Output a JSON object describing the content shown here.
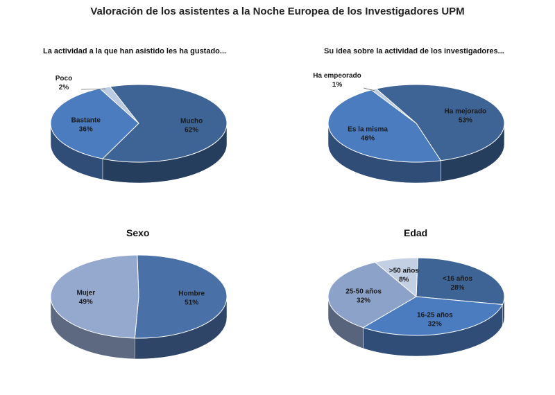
{
  "title": "Valoración de los asistentes a la Noche Europea de los Investigadores UPM",
  "chart_data": [
    {
      "type": "pie",
      "title": "La actividad a la que han asistido les ha gustado...",
      "slices": [
        {
          "label": "Mucho",
          "value": 62,
          "value_label": "62%",
          "color": "#3E6496"
        },
        {
          "label": "Bastante",
          "value": 36,
          "value_label": "36%",
          "color": "#4B7CC0"
        },
        {
          "label": "Poco",
          "value": 2,
          "value_label": "2%",
          "color": "#BBCBE3"
        }
      ]
    },
    {
      "type": "pie",
      "title": "Su idea sobre la actividad de los investigadores...",
      "slices": [
        {
          "label": "Ha mejorado",
          "value": 53,
          "value_label": "53%",
          "color": "#3E6496"
        },
        {
          "label": "Es la misma",
          "value": 46,
          "value_label": "46%",
          "color": "#4B7CC0"
        },
        {
          "label": "Ha empeorado",
          "value": 1,
          "value_label": "1%",
          "color": "#BBCBE3"
        }
      ]
    },
    {
      "type": "pie",
      "title": "Sexo",
      "slices": [
        {
          "label": "Hombre",
          "value": 51,
          "value_label": "51%",
          "color": "#4A70A8"
        },
        {
          "label": "Mujer",
          "value": 49,
          "value_label": "49%",
          "color": "#95A9CF"
        }
      ]
    },
    {
      "type": "pie",
      "title": "Edad",
      "slices": [
        {
          "label": "<16 años",
          "value": 28,
          "value_label": "28%",
          "color": "#3E6496"
        },
        {
          "label": "16-25 años",
          "value": 32,
          "value_label": "32%",
          "color": "#4B7CC0"
        },
        {
          "label": "25-50 años",
          "value": 32,
          "value_label": "32%",
          "color": "#8CA2C8"
        },
        {
          "label": ">50 años",
          "value": 8,
          "value_label": "8%",
          "color": "#C3CFE3"
        }
      ]
    }
  ]
}
